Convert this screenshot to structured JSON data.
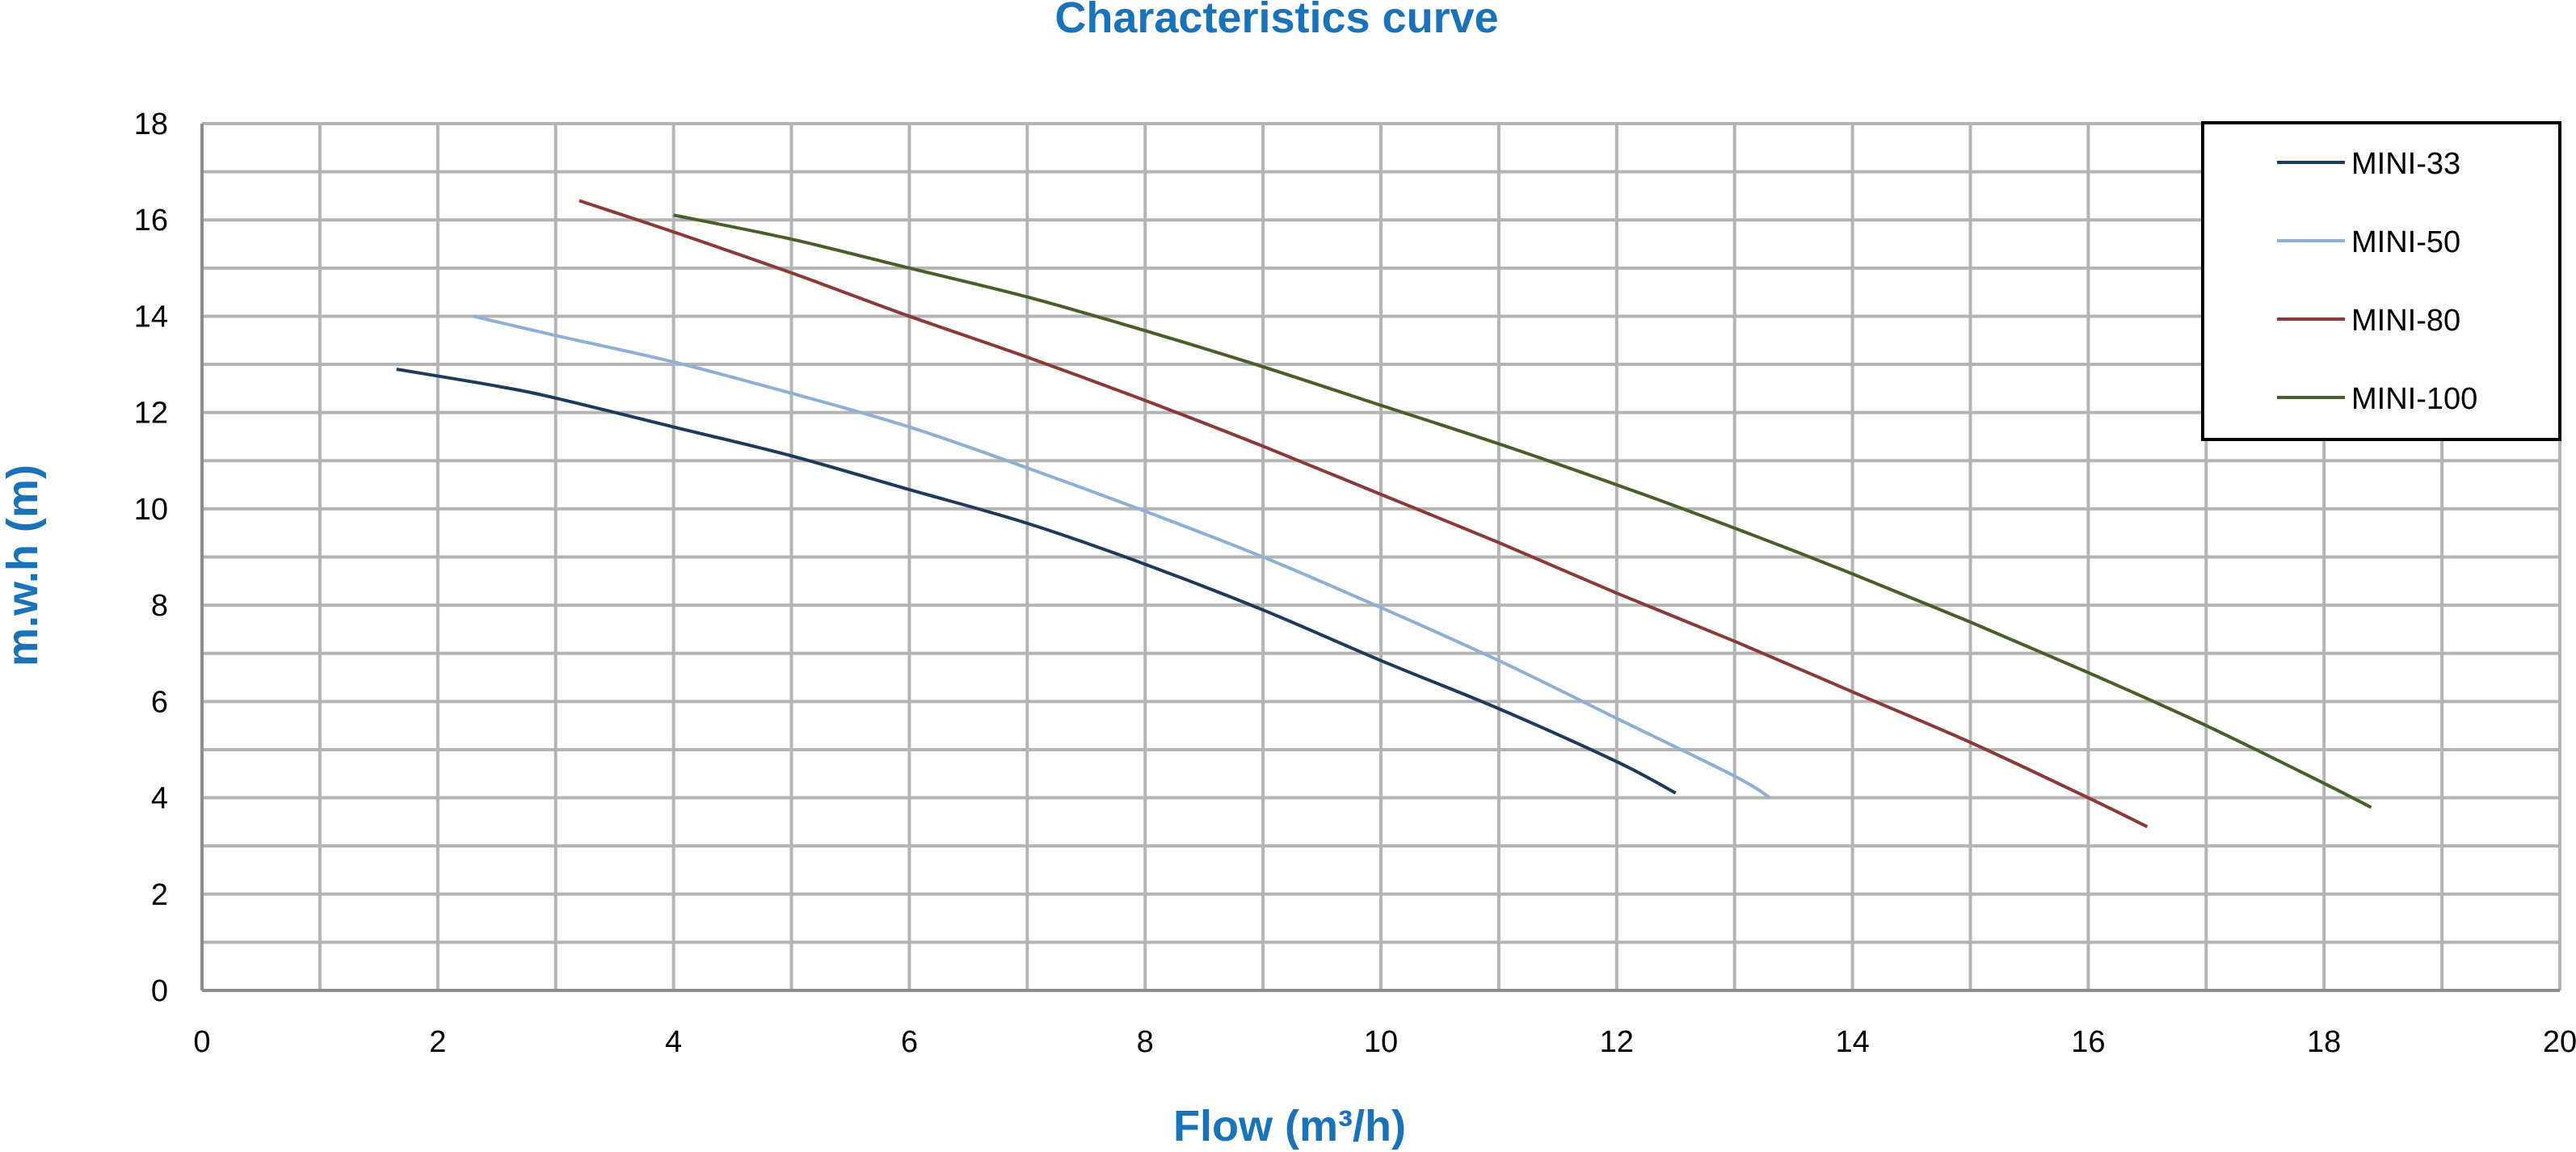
{
  "chart_data": {
    "type": "line",
    "title": "Characteristics curve",
    "xlabel": "Flow (m³/h)",
    "ylabel": "m.w.h (m)",
    "xlim": [
      0,
      20
    ],
    "ylim": [
      0,
      18
    ],
    "x_ticks": [
      0,
      2,
      4,
      6,
      8,
      10,
      12,
      14,
      16,
      18,
      20
    ],
    "y_ticks": [
      0,
      2,
      4,
      6,
      8,
      10,
      12,
      14,
      16,
      18
    ],
    "x_grid_step": 1,
    "y_grid_step": 1,
    "grid": true,
    "legend_position": "top-right",
    "series": [
      {
        "name": "MINI-33",
        "color": "#1f3a5a",
        "points": [
          [
            1.65,
            12.9
          ],
          [
            2.5,
            12.55
          ],
          [
            3,
            12.3
          ],
          [
            4,
            11.7
          ],
          [
            5,
            11.1
          ],
          [
            6,
            10.4
          ],
          [
            7,
            9.7
          ],
          [
            8,
            8.85
          ],
          [
            9,
            7.9
          ],
          [
            10,
            6.85
          ],
          [
            11,
            5.85
          ],
          [
            12,
            4.75
          ],
          [
            12.5,
            4.1
          ]
        ]
      },
      {
        "name": "MINI-50",
        "color": "#8fb0d3",
        "points": [
          [
            2.3,
            14.0
          ],
          [
            3,
            13.6
          ],
          [
            4,
            13.05
          ],
          [
            5,
            12.4
          ],
          [
            6,
            11.7
          ],
          [
            7,
            10.85
          ],
          [
            8,
            9.95
          ],
          [
            9,
            9.0
          ],
          [
            10,
            7.95
          ],
          [
            11,
            6.85
          ],
          [
            12,
            5.65
          ],
          [
            13,
            4.45
          ],
          [
            13.3,
            4.0
          ]
        ]
      },
      {
        "name": "MINI-80",
        "color": "#8b3a3a",
        "points": [
          [
            3.2,
            16.4
          ],
          [
            4,
            15.75
          ],
          [
            5,
            14.9
          ],
          [
            6,
            14.0
          ],
          [
            7,
            13.15
          ],
          [
            8,
            12.25
          ],
          [
            9,
            11.3
          ],
          [
            10,
            10.3
          ],
          [
            11,
            9.3
          ],
          [
            12,
            8.25
          ],
          [
            13,
            7.25
          ],
          [
            14,
            6.2
          ],
          [
            15,
            5.15
          ],
          [
            16,
            4.0
          ],
          [
            16.5,
            3.4
          ]
        ]
      },
      {
        "name": "MINI-100",
        "color": "#4b5e2a",
        "points": [
          [
            4.0,
            16.1
          ],
          [
            5,
            15.6
          ],
          [
            6,
            15.0
          ],
          [
            7,
            14.4
          ],
          [
            8,
            13.7
          ],
          [
            9,
            12.95
          ],
          [
            10,
            12.15
          ],
          [
            11,
            11.35
          ],
          [
            12,
            10.5
          ],
          [
            13,
            9.6
          ],
          [
            14,
            8.65
          ],
          [
            15,
            7.65
          ],
          [
            16,
            6.6
          ],
          [
            17,
            5.5
          ],
          [
            18,
            4.3
          ],
          [
            18.4,
            3.8
          ]
        ]
      }
    ]
  }
}
